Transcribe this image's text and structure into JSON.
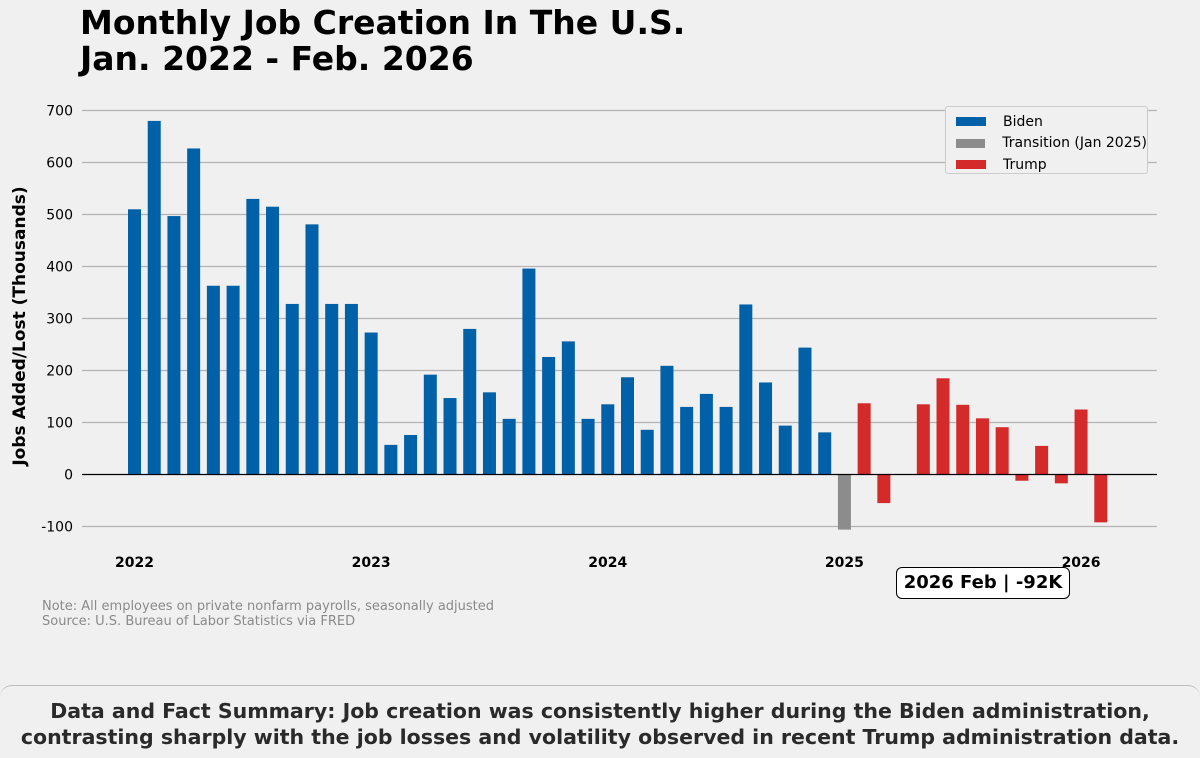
{
  "chart_data": {
    "type": "bar",
    "title": "Monthly Job Creation In The U.S.",
    "subtitle": "Jan. 2022 - Feb. 2026",
    "xlabel": "",
    "ylabel": "Jobs Added/Lost (Thousands)",
    "ylim": [
      -115,
      740
    ],
    "yticks": [
      -100,
      0,
      100,
      200,
      300,
      400,
      500,
      600,
      700
    ],
    "grid": true,
    "legend_position": "top-right",
    "year_ticks": [
      {
        "label": "2022",
        "month_index": 0
      },
      {
        "label": "2023",
        "month_index": 12
      },
      {
        "label": "2024",
        "month_index": 24
      },
      {
        "label": "2025",
        "month_index": 36
      },
      {
        "label": "2026",
        "month_index": 48
      }
    ],
    "series": [
      {
        "name": "Biden",
        "color": "#0060a8",
        "start_index": 0,
        "values": [
          510,
          680,
          497,
          627,
          363,
          363,
          530,
          515,
          328,
          481,
          328,
          328,
          273,
          57,
          76,
          192,
          147,
          280,
          158,
          107,
          396,
          226,
          256,
          107,
          135,
          187,
          86,
          209,
          130,
          155,
          130,
          327,
          177,
          94,
          244,
          81
        ]
      },
      {
        "name": "Transition (Jan 2025)",
        "color": "#8c8c8c",
        "start_index": 36,
        "values": [
          -106
        ]
      },
      {
        "name": "Trump",
        "color": "#d42a2a",
        "start_index": 37,
        "values": [
          137,
          -55,
          null,
          135,
          185,
          134,
          108,
          91,
          -12,
          55,
          -17,
          125,
          -92
        ]
      }
    ]
  },
  "annotation": "2026 Feb | -92K",
  "note": "Note: All employees on private nonfarm payrolls, seasonally adjusted",
  "source": "Source: U.S. Bureau of Labor Statistics via FRED",
  "summary_line1": "Data and Fact Summary: Job creation was consistently higher during the Biden administration,",
  "summary_line2": "contrasting sharply with the job losses and volatility observed in recent Trump administration data."
}
